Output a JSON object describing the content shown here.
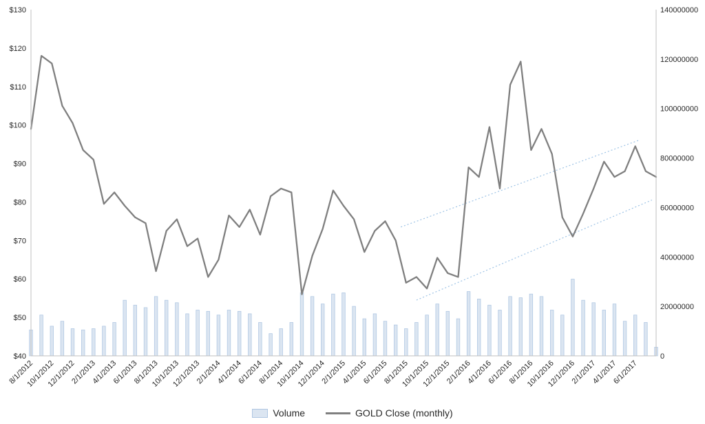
{
  "chart_data": {
    "type": "combo",
    "title": "",
    "x": [
      "8/1/2012",
      "9/1/2012",
      "10/1/2012",
      "11/1/2012",
      "12/1/2012",
      "1/1/2013",
      "2/1/2013",
      "3/1/2013",
      "4/1/2013",
      "5/1/2013",
      "6/1/2013",
      "7/1/2013",
      "8/1/2013",
      "9/1/2013",
      "10/1/2013",
      "11/1/2013",
      "12/1/2013",
      "1/1/2014",
      "2/1/2014",
      "3/1/2014",
      "4/1/2014",
      "5/1/2014",
      "6/1/2014",
      "7/1/2014",
      "8/1/2014",
      "9/1/2014",
      "10/1/2014",
      "11/1/2014",
      "12/1/2014",
      "1/1/2015",
      "2/1/2015",
      "3/1/2015",
      "4/1/2015",
      "5/1/2015",
      "6/1/2015",
      "7/1/2015",
      "8/1/2015",
      "9/1/2015",
      "10/1/2015",
      "11/1/2015",
      "12/1/2015",
      "1/1/2016",
      "2/1/2016",
      "3/1/2016",
      "4/1/2016",
      "5/1/2016",
      "6/1/2016",
      "7/1/2016",
      "8/1/2016",
      "9/1/2016",
      "10/1/2016",
      "11/1/2016",
      "12/1/2016",
      "1/1/2017",
      "2/1/2017",
      "3/1/2017",
      "4/1/2017",
      "5/1/2017",
      "6/1/2017",
      "7/1/2017",
      "8/1/2017"
    ],
    "x_tick_step": 2,
    "x_tick_count": 30,
    "series": [
      {
        "name": "Volume",
        "type": "bar",
        "axis": "right",
        "color": "#dbe5f1",
        "border_color": "#aec6e2",
        "values": [
          10500000,
          16500000,
          12000000,
          14000000,
          11000000,
          10500000,
          11000000,
          12000000,
          13500000,
          22500000,
          20500000,
          19500000,
          24000000,
          22500000,
          21500000,
          17000000,
          18500000,
          18000000,
          16500000,
          18500000,
          18000000,
          17000000,
          13500000,
          9000000,
          11000000,
          13500000,
          25500000,
          24000000,
          21000000,
          25000000,
          25500000,
          20000000,
          15000000,
          17000000,
          14000000,
          12500000,
          11000000,
          13500000,
          16500000,
          21000000,
          18000000,
          15000000,
          26000000,
          23000000,
          20500000,
          18500000,
          24000000,
          23500000,
          25000000,
          24000000,
          18500000,
          16500000,
          31000000,
          22500000,
          21500000,
          18500000,
          21000000,
          14000000,
          16500000,
          13500000,
          3500000
        ]
      },
      {
        "name": "GOLD Close (monthly)",
        "type": "line",
        "axis": "left",
        "color": "#7f7f7f",
        "values": [
          99,
          118,
          116,
          105,
          100.5,
          93.5,
          91,
          79.5,
          82.5,
          79,
          76,
          74.5,
          62,
          72.5,
          75.5,
          68.5,
          70.5,
          60.5,
          65,
          76.5,
          73.5,
          78,
          71.5,
          81.5,
          83.5,
          82.5,
          56,
          66,
          73,
          83,
          79,
          75.5,
          67,
          72.5,
          75,
          70,
          59,
          60.5,
          57.5,
          65.5,
          61.5,
          60.5,
          89,
          86.5,
          99.5,
          83.5,
          110.5,
          116.5,
          93.5,
          99,
          92.5,
          76,
          71,
          77,
          83.5,
          90.5,
          86.5,
          88,
          94.5,
          88,
          86.5
        ]
      }
    ],
    "left_axis": {
      "min": 40,
      "max": 130,
      "tick_labels": [
        "$130",
        "$120",
        "$110",
        "$100",
        "$90",
        "$80",
        "$70",
        "$60",
        "$50",
        "$40"
      ],
      "tick_values": [
        130,
        120,
        110,
        100,
        90,
        80,
        70,
        60,
        50,
        40
      ]
    },
    "right_axis": {
      "min": 0,
      "max": 140000000,
      "tick_labels": [
        "140000000",
        "120000000",
        "100000000",
        "80000000",
        "60000000",
        "40000000",
        "20000000",
        "0"
      ],
      "tick_values": [
        140000000,
        120000000,
        100000000,
        80000000,
        60000000,
        40000000,
        20000000,
        0
      ]
    },
    "trendlines": [
      {
        "name": "channel-upper-trendline",
        "color": "#9cc2e5",
        "start_index": 35.5,
        "start_value": 73.5,
        "end_index": 58.3,
        "end_value": 96
      },
      {
        "name": "channel-lower-trendline",
        "color": "#9cc2e5",
        "start_index": 37,
        "start_value": 54.5,
        "end_index": 59.6,
        "end_value": 80.5
      }
    ],
    "legend": {
      "position": "bottom",
      "items": [
        {
          "label": "Volume"
        },
        {
          "label": "GOLD Close (monthly)"
        }
      ]
    },
    "grid": "off",
    "axis_line_color": "#bfbfbf",
    "text_color": "#262626"
  }
}
